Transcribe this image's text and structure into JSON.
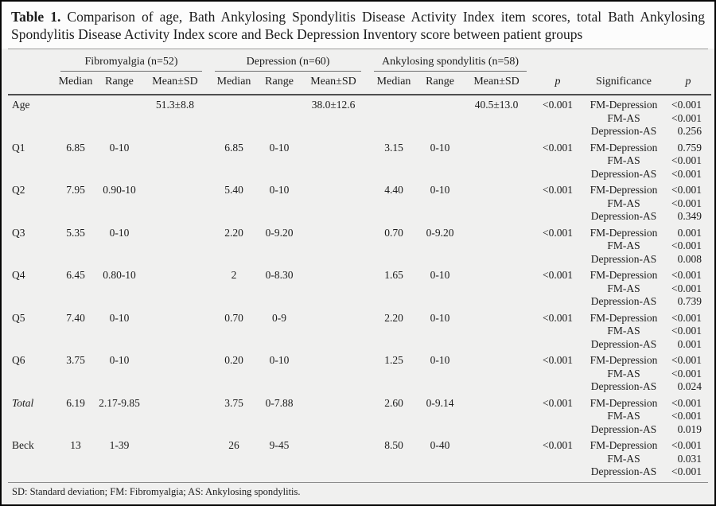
{
  "title": {
    "label": "Table 1.",
    "text": "Comparison of age, Bath Ankylosing Spondylitis Disease Activity Index item scores, total Bath Ankylosing Spondylitis Disease Activity Index score and Beck Depression Inventory score between patient groups"
  },
  "table": {
    "groups": [
      {
        "label": "Fibromyalgia (n=52)"
      },
      {
        "label": "Depression (n=60)"
      },
      {
        "label": "Ankylosing spondylitis (n=58)"
      }
    ],
    "sub_headers": [
      "Median",
      "Range",
      "Mean±SD"
    ],
    "p_header": "p",
    "significance_header": "Significance",
    "p2_header": "p",
    "rows": [
      {
        "label": "Age",
        "italic": false,
        "fm": {
          "median": "",
          "range": "",
          "mean_sd": "51.3±8.8"
        },
        "dep": {
          "median": "",
          "range": "",
          "mean_sd": "38.0±12.6"
        },
        "as": {
          "median": "",
          "range": "",
          "mean_sd": "40.5±13.0"
        },
        "p": "<0.001",
        "significance": [
          {
            "label": "FM-Depression",
            "p": "<0.001"
          },
          {
            "label": "FM-AS",
            "p": "<0.001"
          },
          {
            "label": "Depression-AS",
            "p": "0.256"
          }
        ]
      },
      {
        "label": "Q1",
        "italic": false,
        "fm": {
          "median": "6.85",
          "range": "0-10",
          "mean_sd": ""
        },
        "dep": {
          "median": "6.85",
          "range": "0-10",
          "mean_sd": ""
        },
        "as": {
          "median": "3.15",
          "range": "0-10",
          "mean_sd": ""
        },
        "p": "<0.001",
        "significance": [
          {
            "label": "FM-Depression",
            "p": "0.759"
          },
          {
            "label": "FM-AS",
            "p": "<0.001"
          },
          {
            "label": "Depression-AS",
            "p": "<0.001"
          }
        ]
      },
      {
        "label": "Q2",
        "italic": false,
        "fm": {
          "median": "7.95",
          "range": "0.90-10",
          "mean_sd": ""
        },
        "dep": {
          "median": "5.40",
          "range": "0-10",
          "mean_sd": ""
        },
        "as": {
          "median": "4.40",
          "range": "0-10",
          "mean_sd": ""
        },
        "p": "<0.001",
        "significance": [
          {
            "label": "FM-Depression",
            "p": "<0.001"
          },
          {
            "label": "FM-AS",
            "p": "<0.001"
          },
          {
            "label": "Depression-AS",
            "p": "0.349"
          }
        ]
      },
      {
        "label": "Q3",
        "italic": false,
        "fm": {
          "median": "5.35",
          "range": "0-10",
          "mean_sd": ""
        },
        "dep": {
          "median": "2.20",
          "range": "0-9.20",
          "mean_sd": ""
        },
        "as": {
          "median": "0.70",
          "range": "0-9.20",
          "mean_sd": ""
        },
        "p": "<0.001",
        "significance": [
          {
            "label": "FM-Depression",
            "p": "0.001"
          },
          {
            "label": "FM-AS",
            "p": "<0.001"
          },
          {
            "label": "Depression-AS",
            "p": "0.008"
          }
        ]
      },
      {
        "label": "Q4",
        "italic": false,
        "fm": {
          "median": "6.45",
          "range": "0.80-10",
          "mean_sd": ""
        },
        "dep": {
          "median": "2",
          "range": "0-8.30",
          "mean_sd": ""
        },
        "as": {
          "median": "1.65",
          "range": "0-10",
          "mean_sd": ""
        },
        "p": "<0.001",
        "significance": [
          {
            "label": "FM-Depression",
            "p": "<0.001"
          },
          {
            "label": "FM-AS",
            "p": "<0.001"
          },
          {
            "label": "Depression-AS",
            "p": "0.739"
          }
        ]
      },
      {
        "label": "Q5",
        "italic": false,
        "fm": {
          "median": "7.40",
          "range": "0-10",
          "mean_sd": ""
        },
        "dep": {
          "median": "0.70",
          "range": "0-9",
          "mean_sd": ""
        },
        "as": {
          "median": "2.20",
          "range": "0-10",
          "mean_sd": ""
        },
        "p": "<0.001",
        "significance": [
          {
            "label": "FM-Depression",
            "p": "<0.001"
          },
          {
            "label": "FM-AS",
            "p": "<0.001"
          },
          {
            "label": "Depression-AS",
            "p": "0.001"
          }
        ]
      },
      {
        "label": "Q6",
        "italic": false,
        "fm": {
          "median": "3.75",
          "range": "0-10",
          "mean_sd": ""
        },
        "dep": {
          "median": "0.20",
          "range": "0-10",
          "mean_sd": ""
        },
        "as": {
          "median": "1.25",
          "range": "0-10",
          "mean_sd": ""
        },
        "p": "<0.001",
        "significance": [
          {
            "label": "FM-Depression",
            "p": "<0.001"
          },
          {
            "label": "FM-AS",
            "p": "<0.001"
          },
          {
            "label": "Depression-AS",
            "p": "0.024"
          }
        ]
      },
      {
        "label": "Total",
        "italic": true,
        "fm": {
          "median": "6.19",
          "range": "2.17-9.85",
          "mean_sd": ""
        },
        "dep": {
          "median": "3.75",
          "range": "0-7.88",
          "mean_sd": ""
        },
        "as": {
          "median": "2.60",
          "range": "0-9.14",
          "mean_sd": ""
        },
        "p": "<0.001",
        "significance": [
          {
            "label": "FM-Depression",
            "p": "<0.001"
          },
          {
            "label": "FM-AS",
            "p": "<0.001"
          },
          {
            "label": "Depression-AS",
            "p": "0.019"
          }
        ]
      },
      {
        "label": "Beck",
        "italic": false,
        "fm": {
          "median": "13",
          "range": "1-39",
          "mean_sd": ""
        },
        "dep": {
          "median": "26",
          "range": "9-45",
          "mean_sd": ""
        },
        "as": {
          "median": "8.50",
          "range": "0-40",
          "mean_sd": ""
        },
        "p": "<0.001",
        "significance": [
          {
            "label": "FM-Depression",
            "p": "<0.001"
          },
          {
            "label": "FM-AS",
            "p": "0.031"
          },
          {
            "label": "Depression-AS",
            "p": "<0.001"
          }
        ]
      }
    ]
  },
  "footnote": "SD: Standard deviation; FM: Fibromyalgia; AS: Ankylosing spondylitis."
}
